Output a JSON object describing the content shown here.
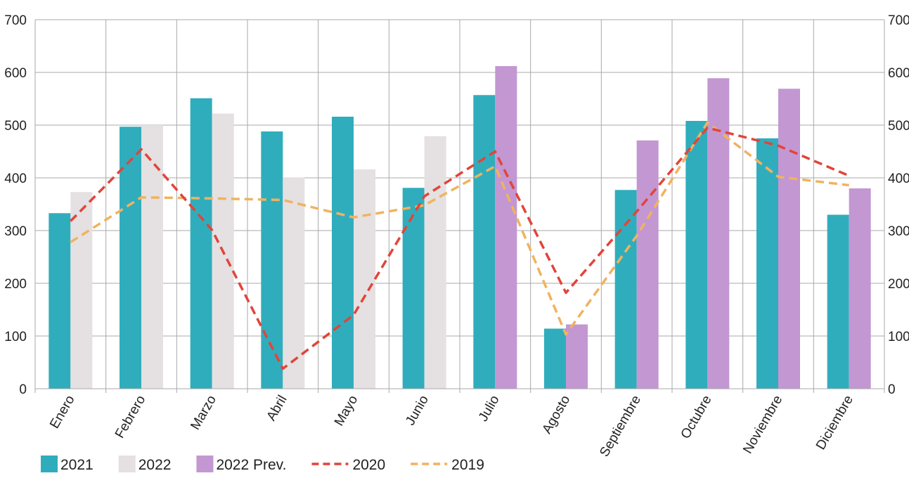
{
  "chart_data": {
    "type": "bar",
    "categories": [
      "Enero",
      "Febrero",
      "Marzo",
      "Abril",
      "Mayo",
      "Junio",
      "Julio",
      "Agosto",
      "Septiembre",
      "Octubre",
      "Noviembre",
      "Diciembre"
    ],
    "ylim": [
      0,
      700
    ],
    "yticks": [
      0,
      100,
      200,
      300,
      400,
      500,
      600,
      700
    ],
    "grid": true,
    "legend_position": "bottom-left",
    "series": [
      {
        "name": "2021",
        "kind": "bar",
        "color": "#30adbc",
        "values": [
          333,
          497,
          551,
          488,
          516,
          381,
          557,
          114,
          377,
          508,
          475,
          330
        ]
      },
      {
        "name": "2022",
        "kind": "bar",
        "color": "#e5e0e1",
        "values": [
          373,
          500,
          522,
          401,
          416,
          479,
          null,
          null,
          null,
          null,
          null,
          null
        ]
      },
      {
        "name": "2022 Prev.",
        "kind": "bar",
        "color": "#c397d2",
        "values": [
          null,
          null,
          null,
          null,
          null,
          null,
          612,
          122,
          471,
          589,
          569,
          380
        ]
      },
      {
        "name": "2020",
        "kind": "line",
        "style": "dashed",
        "color": "#e2443a",
        "values": [
          318,
          454,
          301,
          38,
          140,
          365,
          450,
          182,
          336,
          495,
          461,
          404
        ]
      },
      {
        "name": "2019",
        "kind": "line",
        "style": "dashed",
        "color": "#f0b35f",
        "values": [
          278,
          363,
          361,
          358,
          325,
          348,
          422,
          103,
          290,
          505,
          402,
          386
        ]
      }
    ]
  }
}
